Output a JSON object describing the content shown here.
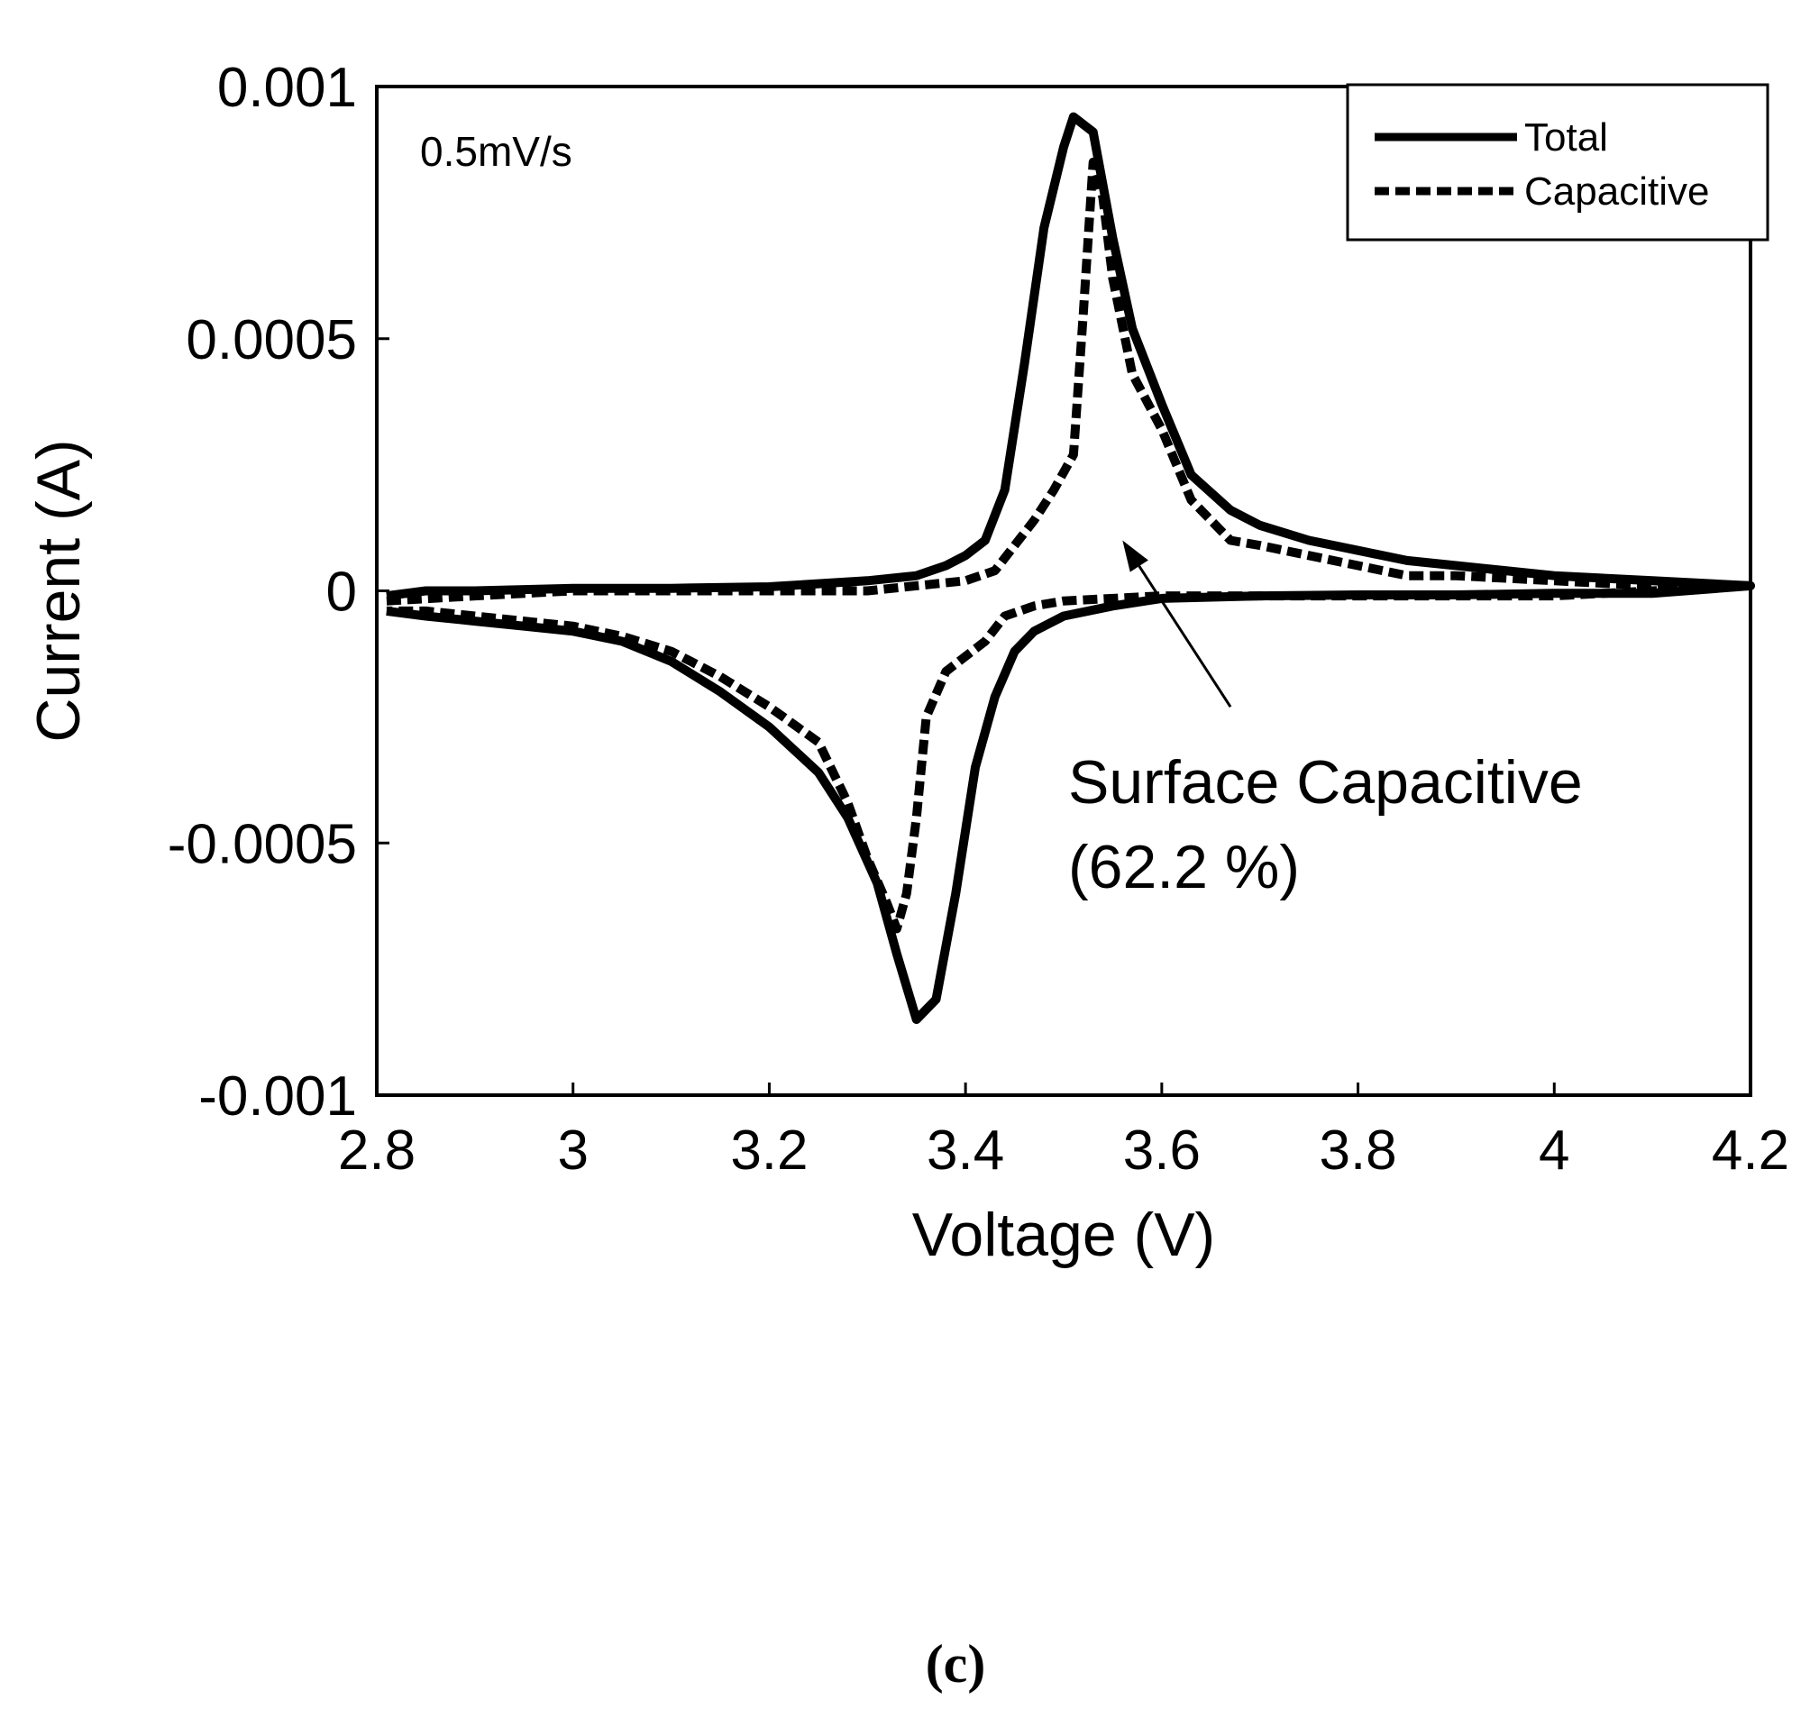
{
  "chart_data": {
    "type": "line",
    "title": "",
    "xlabel": "Voltage (V)",
    "ylabel": "Current (A)",
    "xlim": [
      2.8,
      4.2
    ],
    "ylim": [
      -0.001,
      0.001
    ],
    "xticks": [
      2.8,
      3.0,
      3.2,
      3.4,
      3.6,
      3.8,
      4.0,
      4.2
    ],
    "xtick_labels": [
      "2.8",
      "3",
      "3.2",
      "3.4",
      "3.6",
      "3.8",
      "4",
      "4.2"
    ],
    "yticks": [
      -0.001,
      -0.0005,
      0,
      0.0005,
      0.001
    ],
    "ytick_labels": [
      "-0.001",
      "-0.0005",
      "0",
      "0.0005",
      "0.001"
    ],
    "grid": false,
    "legend_position": "top-right",
    "note": "0.5mV/s",
    "annotation": {
      "text_line1": "Surface Capacitive",
      "text_line2": "(62.2 %)",
      "arrow_tail": {
        "x": 3.67,
        "y": -0.00023
      },
      "arrow_head": {
        "x": 3.56,
        "y": 0.0001
      }
    },
    "panel_label": "(c)",
    "series": [
      {
        "name": "Total",
        "style": "solid",
        "points": [
          [
            2.81,
            -1e-05
          ],
          [
            2.85,
            0.0
          ],
          [
            2.9,
            0.0
          ],
          [
            3.0,
            5e-06
          ],
          [
            3.1,
            5e-06
          ],
          [
            3.2,
            8e-06
          ],
          [
            3.3,
            2e-05
          ],
          [
            3.35,
            3e-05
          ],
          [
            3.38,
            5e-05
          ],
          [
            3.4,
            7e-05
          ],
          [
            3.42,
            0.0001
          ],
          [
            3.44,
            0.0002
          ],
          [
            3.46,
            0.00045
          ],
          [
            3.48,
            0.00072
          ],
          [
            3.5,
            0.00088
          ],
          [
            3.51,
            0.00094
          ],
          [
            3.53,
            0.00091
          ],
          [
            3.55,
            0.0007
          ],
          [
            3.57,
            0.00052
          ],
          [
            3.6,
            0.00037
          ],
          [
            3.63,
            0.00023
          ],
          [
            3.67,
            0.00016
          ],
          [
            3.7,
            0.00013
          ],
          [
            3.75,
            0.0001
          ],
          [
            3.8,
            8e-05
          ],
          [
            3.85,
            6e-05
          ],
          [
            3.9,
            5e-05
          ],
          [
            4.0,
            3e-05
          ],
          [
            4.1,
            2e-05
          ],
          [
            4.2,
            1e-05
          ],
          [
            4.1,
            -5e-06
          ],
          [
            4.0,
            -5e-06
          ],
          [
            3.9,
            -8e-06
          ],
          [
            3.8,
            -8e-06
          ],
          [
            3.7,
            -1e-05
          ],
          [
            3.6,
            -1.5e-05
          ],
          [
            3.55,
            -3e-05
          ],
          [
            3.5,
            -5e-05
          ],
          [
            3.47,
            -8e-05
          ],
          [
            3.45,
            -0.00012
          ],
          [
            3.43,
            -0.00021
          ],
          [
            3.41,
            -0.00035
          ],
          [
            3.39,
            -0.0006
          ],
          [
            3.37,
            -0.00081
          ],
          [
            3.35,
            -0.00085
          ],
          [
            3.33,
            -0.00072
          ],
          [
            3.31,
            -0.00058
          ],
          [
            3.28,
            -0.00045
          ],
          [
            3.25,
            -0.00036
          ],
          [
            3.2,
            -0.00027
          ],
          [
            3.15,
            -0.0002
          ],
          [
            3.1,
            -0.00014
          ],
          [
            3.05,
            -0.0001
          ],
          [
            3.0,
            -8e-05
          ],
          [
            2.95,
            -7e-05
          ],
          [
            2.9,
            -6e-05
          ],
          [
            2.85,
            -5e-05
          ],
          [
            2.81,
            -4e-05
          ]
        ]
      },
      {
        "name": "Capacitive",
        "style": "dashed",
        "points": [
          [
            2.81,
            -2e-05
          ],
          [
            2.9,
            -1e-05
          ],
          [
            3.0,
            0.0
          ],
          [
            3.2,
            0.0
          ],
          [
            3.3,
            0.0
          ],
          [
            3.35,
            1e-05
          ],
          [
            3.4,
            2e-05
          ],
          [
            3.43,
            4e-05
          ],
          [
            3.45,
            9e-05
          ],
          [
            3.47,
            0.00014
          ],
          [
            3.49,
            0.0002
          ],
          [
            3.51,
            0.00027
          ],
          [
            3.52,
            0.00055
          ],
          [
            3.53,
            0.00085
          ],
          [
            3.54,
            0.00078
          ],
          [
            3.55,
            0.00062
          ],
          [
            3.57,
            0.00043
          ],
          [
            3.6,
            0.00032
          ],
          [
            3.63,
            0.00018
          ],
          [
            3.67,
            0.0001
          ],
          [
            3.7,
            9e-05
          ],
          [
            3.75,
            7e-05
          ],
          [
            3.8,
            5e-05
          ],
          [
            3.85,
            3e-05
          ],
          [
            3.9,
            3e-05
          ],
          [
            4.0,
            2e-05
          ],
          [
            4.1,
            1e-05
          ],
          [
            4.2,
            1e-05
          ],
          [
            4.0,
            -1e-05
          ],
          [
            3.8,
            -1e-05
          ],
          [
            3.6,
            -1e-05
          ],
          [
            3.5,
            -2e-05
          ],
          [
            3.47,
            -3e-05
          ],
          [
            3.44,
            -5e-05
          ],
          [
            3.42,
            -0.0001
          ],
          [
            3.4,
            -0.00013
          ],
          [
            3.38,
            -0.00016
          ],
          [
            3.36,
            -0.00025
          ],
          [
            3.35,
            -0.00045
          ],
          [
            3.34,
            -0.0006
          ],
          [
            3.33,
            -0.00067
          ],
          [
            3.32,
            -0.00062
          ],
          [
            3.3,
            -0.00053
          ],
          [
            3.28,
            -0.00042
          ],
          [
            3.25,
            -0.0003
          ],
          [
            3.2,
            -0.00023
          ],
          [
            3.15,
            -0.00017
          ],
          [
            3.1,
            -0.00012
          ],
          [
            3.05,
            -9e-05
          ],
          [
            3.0,
            -7e-05
          ],
          [
            2.95,
            -6e-05
          ],
          [
            2.9,
            -5e-05
          ],
          [
            2.85,
            -4e-05
          ],
          [
            2.81,
            -4e-05
          ]
        ]
      }
    ]
  }
}
